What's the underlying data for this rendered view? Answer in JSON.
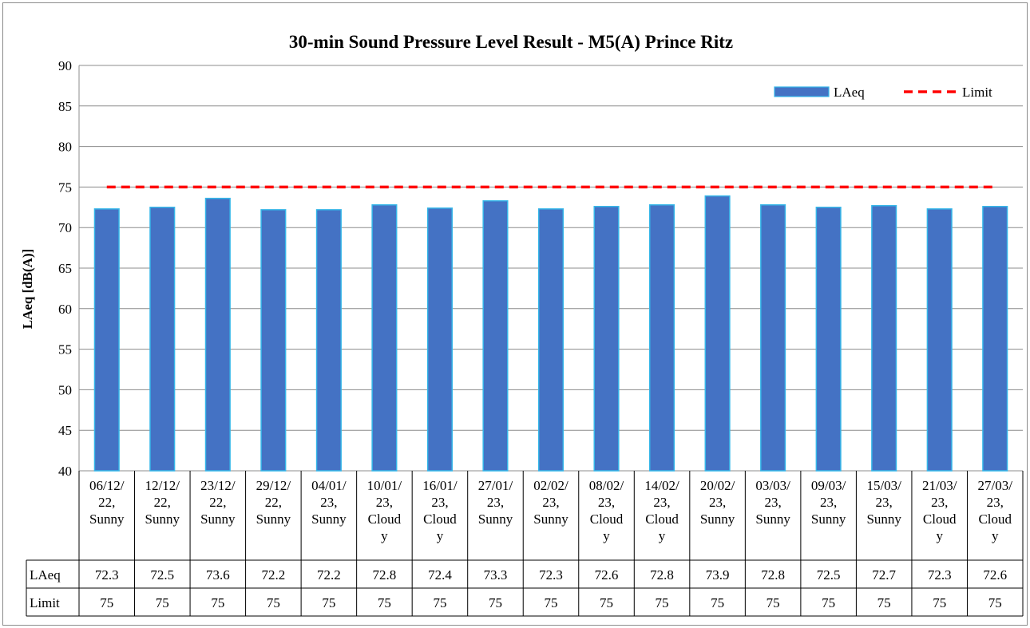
{
  "chart_data": {
    "type": "bar",
    "title": "30-min Sound Pressure Level Result - M5(A) Prince Ritz",
    "ylabel": "LAeq [dB(A)]",
    "xlabel": "",
    "ylim": [
      40,
      90
    ],
    "yticks": [
      40,
      45,
      50,
      55,
      60,
      65,
      70,
      75,
      80,
      85,
      90
    ],
    "grid": true,
    "legend_position": "top-right",
    "categories": [
      [
        "06/12/",
        "22,",
        "Sunny"
      ],
      [
        "12/12/",
        "22,",
        "Sunny"
      ],
      [
        "23/12/",
        "22,",
        "Sunny"
      ],
      [
        "29/12/",
        "22,",
        "Sunny"
      ],
      [
        "04/01/",
        "23,",
        "Sunny"
      ],
      [
        "10/01/",
        "23,",
        "Cloud",
        "y"
      ],
      [
        "16/01/",
        "23,",
        "Cloud",
        "y"
      ],
      [
        "27/01/",
        "23,",
        "Sunny"
      ],
      [
        "02/02/",
        "23,",
        "Sunny"
      ],
      [
        "08/02/",
        "23,",
        "Cloud",
        "y"
      ],
      [
        "14/02/",
        "23,",
        "Cloud",
        "y"
      ],
      [
        "20/02/",
        "23,",
        "Sunny"
      ],
      [
        "03/03/",
        "23,",
        "Sunny"
      ],
      [
        "09/03/",
        "23,",
        "Sunny"
      ],
      [
        "15/03/",
        "23,",
        "Sunny"
      ],
      [
        "21/03/",
        "23,",
        "Cloud",
        "y"
      ],
      [
        "27/03/",
        "23,",
        "Cloud",
        "y"
      ]
    ],
    "series": [
      {
        "name": "LAeq",
        "type": "bar",
        "color": "#4472C4",
        "edge_color": "#35B6E8",
        "values": [
          72.3,
          72.5,
          73.6,
          72.2,
          72.2,
          72.8,
          72.4,
          73.3,
          72.3,
          72.6,
          72.8,
          73.9,
          72.8,
          72.5,
          72.7,
          72.3,
          72.6
        ]
      },
      {
        "name": "Limit",
        "type": "line",
        "style": "dashed",
        "color": "#FF0000",
        "values": [
          75,
          75,
          75,
          75,
          75,
          75,
          75,
          75,
          75,
          75,
          75,
          75,
          75,
          75,
          75,
          75,
          75
        ]
      }
    ],
    "data_table": true
  }
}
